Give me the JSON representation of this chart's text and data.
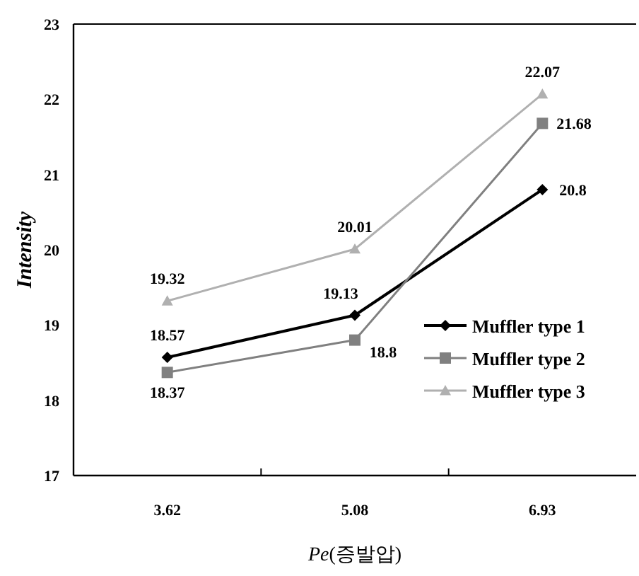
{
  "chart_data": {
    "type": "line",
    "xlabel": "*Pe*(증발압)",
    "ylabel": "Intensity",
    "categories": [
      "3.62",
      "5.08",
      "6.93"
    ],
    "series": [
      {
        "name": "Muffler type 1",
        "color": "#000000",
        "marker": "diamond",
        "values": [
          18.57,
          19.13,
          20.8
        ]
      },
      {
        "name": "Muffler type 2",
        "color": "#808080",
        "marker": "square",
        "values": [
          18.37,
          18.8,
          21.68
        ]
      },
      {
        "name": "Muffler type 3",
        "color": "#b0b0b0",
        "marker": "triangle",
        "values": [
          19.32,
          20.01,
          22.07
        ]
      }
    ],
    "ylim": [
      17,
      23
    ],
    "yticks": [
      17,
      18,
      19,
      20,
      21,
      22,
      23
    ],
    "data_labels": true,
    "legend": "bottom right",
    "grid": false
  }
}
